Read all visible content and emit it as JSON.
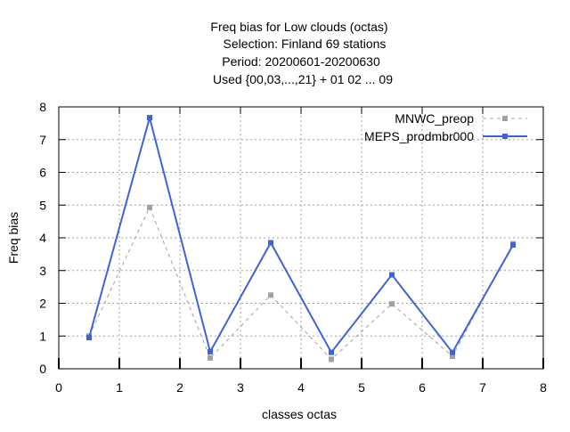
{
  "chart_data": {
    "type": "line",
    "title_lines": [
      "Freq bias  for Low clouds (octas)",
      "Selection: Finland     69 stations",
      "Period: 20200601-20200630",
      "Used {00,03,...,21} + 01 02 ... 09"
    ],
    "xlabel": "classes octas",
    "ylabel": "Freq bias",
    "xlim": [
      0,
      8
    ],
    "ylim": [
      0,
      8
    ],
    "x_ticks": [
      "0",
      "1",
      "2",
      "3",
      "4",
      "5",
      "6",
      "7",
      "8"
    ],
    "y_ticks": [
      "0",
      "1",
      "2",
      "3",
      "4",
      "5",
      "6",
      "7",
      "8"
    ],
    "grid": true,
    "legend_position": "top-right",
    "x": [
      0.5,
      1.5,
      2.5,
      3.5,
      4.5,
      5.5,
      6.5,
      7.5
    ],
    "series": [
      {
        "name": "MNWC_preop",
        "color": "#a0a0a0",
        "style": "dashed",
        "values": [
          1.0,
          4.93,
          0.33,
          2.25,
          0.29,
          1.98,
          0.38,
          3.82
        ]
      },
      {
        "name": "MEPS_prodmbr000",
        "color": "#3f63d6",
        "style": "solid",
        "values": [
          0.95,
          7.67,
          0.52,
          3.85,
          0.5,
          2.87,
          0.5,
          3.78
        ]
      }
    ]
  }
}
